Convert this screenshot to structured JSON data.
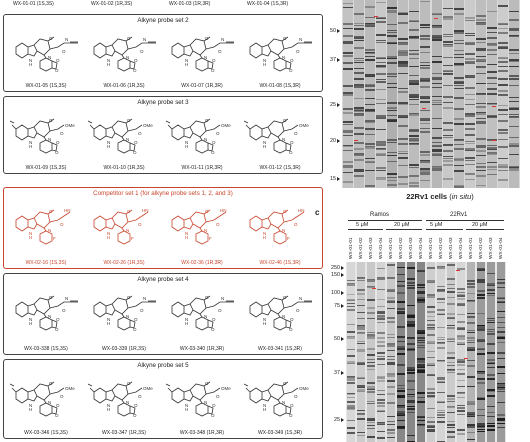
{
  "top_row": {
    "labels": [
      "WX-01-01 (1S,3S)",
      "WX-01-02 (1R,3S)",
      "WX-01-03 (1R,3R)",
      "WX-01-04 (1S,3R)"
    ]
  },
  "sets": [
    {
      "title": "Alkyne probe set 2",
      "labels": [
        "WX-01-05 (1S,3S)",
        "WX-01-06 (1R,3S)",
        "WX-01-07 (1R,3R)",
        "WX-01-08 (1S,3R)"
      ]
    },
    {
      "title": "Alkyne probe set 3",
      "labels": [
        "WX-01-09 (1S,3S)",
        "WX-01-10 (1R,3S)",
        "WX-01-11 (1R,3R)",
        "WX-01-12 (1S,3R)"
      ]
    },
    {
      "title": "Competitor set 1 (for alkyne probe sets 1, 2, and 3)",
      "labels": [
        "WX-02-16 (1S,3S)",
        "WX-02-26 (1R,3S)",
        "WX-02-36 (1R,3R)",
        "WX-02-46 (1S,3R)"
      ]
    },
    {
      "title": "Alkyne probe set 4",
      "labels": [
        "WX-03-338 (1S,3S)",
        "WX-03-339 (1R,3S)",
        "WX-03-340 (1R,3R)",
        "WX-03-341 (1S,3R)"
      ]
    },
    {
      "title": "Alkyne probe set 5",
      "labels": [
        "WX-03-346 (1S,3S)",
        "WX-03-347 (1R,3S)",
        "WX-03-348 (1R,3R)",
        "WX-03-349 (1S,3R)"
      ]
    }
  ],
  "colors": {
    "competitor": "#c8452c",
    "border": "#444444",
    "band_marker": "#dd3333"
  },
  "gel_top": {
    "mw_markers": [
      "50",
      "37",
      "25",
      "20",
      "15"
    ],
    "caption": "22Rv1 cells",
    "caption_italic": "in situ",
    "caption_open": "(",
    "caption_close": ")"
  },
  "gel_bottom": {
    "panel_letter": "c",
    "groups": [
      "Ramos",
      "22Rv1"
    ],
    "concentrations": [
      "5 μM",
      "20 μM",
      "5 μM",
      "20 μM"
    ],
    "lanes": [
      "WX-01-01",
      "WX-01-02",
      "WX-01-03",
      "WX-01-04",
      "WX-01-01",
      "WX-01-02",
      "WX-01-03",
      "WX-01-04",
      "WX-01-01",
      "WX-01-02",
      "WX-01-03",
      "WX-01-04",
      "WX-01-01",
      "WX-01-02",
      "WX-01-03",
      "WX-01-04"
    ],
    "mw_markers": [
      "250",
      "150",
      "100",
      "75",
      "50",
      "37",
      "25"
    ]
  },
  "icons": {
    "arrow": "triangle-right-icon"
  }
}
